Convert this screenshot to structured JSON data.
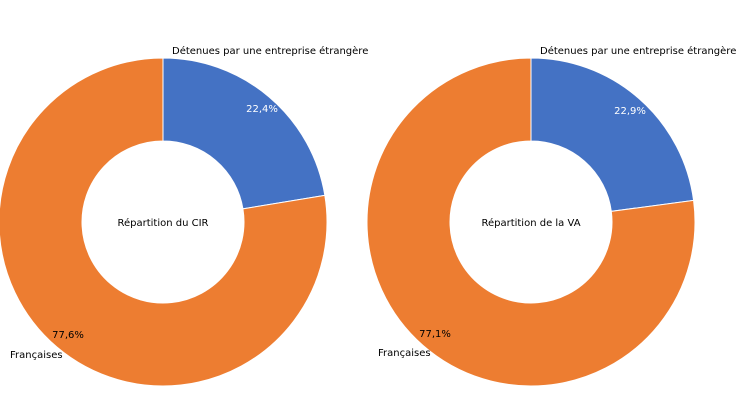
{
  "chart_data": [
    {
      "type": "pie",
      "title": "",
      "center_label": "Répartition du CIR",
      "slices": [
        {
          "label": "Détenues par une entreprise étrangère",
          "value": 22.4,
          "value_label": "22,4%",
          "color": "#4472c4"
        },
        {
          "label": "Françaises",
          "value": 77.6,
          "value_label": "77,6%",
          "color": "#ed7d31"
        }
      ]
    },
    {
      "type": "pie",
      "title": "",
      "center_label": "Répartition de la VA",
      "slices": [
        {
          "label": "Détenues par une entreprise étrangère",
          "value": 22.9,
          "value_label": "22,9%",
          "color": "#4472c4"
        },
        {
          "label": "Françaises",
          "value": 77.1,
          "value_label": "77,1%",
          "color": "#ed7d31"
        }
      ]
    }
  ]
}
